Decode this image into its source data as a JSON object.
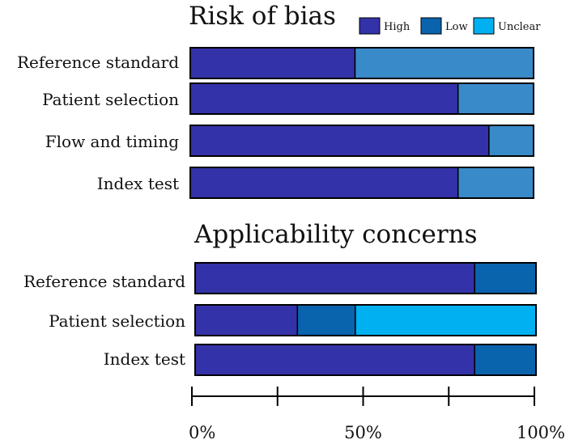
{
  "chart_data": {
    "type": "bar",
    "orientation": "horizontal",
    "stacked": true,
    "legend": {
      "placement": "top-right",
      "entries": [
        {
          "label": "High",
          "color": "#3432a8"
        },
        {
          "label": "Low",
          "color": "#0a63ad"
        },
        {
          "label": "Unclear",
          "color": "#00b0f0"
        }
      ]
    },
    "xlim": [
      0,
      100
    ],
    "xticks": [
      {
        "value": 0,
        "label": "0%"
      },
      {
        "value": 25,
        "label": ""
      },
      {
        "value": 50,
        "label": "50%"
      },
      {
        "value": 75,
        "label": ""
      },
      {
        "value": 100,
        "label": "100%"
      }
    ],
    "panels": [
      {
        "title": "Risk of bias",
        "rows": [
          {
            "label": "Reference standard",
            "segments": [
              {
                "series": "High",
                "value": 48,
                "color": "#3432a8"
              },
              {
                "series": "Unclear",
                "value": 52,
                "color": "#398ac9"
              }
            ]
          },
          {
            "label": "Patient selection",
            "segments": [
              {
                "series": "High",
                "value": 78,
                "color": "#3432a8"
              },
              {
                "series": "Unclear",
                "value": 22,
                "color": "#398ac9"
              }
            ]
          },
          {
            "label": "Flow and timing",
            "segments": [
              {
                "series": "High",
                "value": 87,
                "color": "#3432a8"
              },
              {
                "series": "Unclear",
                "value": 13,
                "color": "#398ac9"
              }
            ]
          },
          {
            "label": "Index test",
            "segments": [
              {
                "series": "High",
                "value": 78,
                "color": "#3432a8"
              },
              {
                "series": "Unclear",
                "value": 22,
                "color": "#398ac9"
              }
            ]
          }
        ]
      },
      {
        "title": "Applicability concerns",
        "rows": [
          {
            "label": "Reference standard",
            "segments": [
              {
                "series": "High",
                "value": 82,
                "color": "#3432a8"
              },
              {
                "series": "Low",
                "value": 18,
                "color": "#0a63ad"
              }
            ]
          },
          {
            "label": "Patient selection",
            "segments": [
              {
                "series": "High",
                "value": 30,
                "color": "#3432a8"
              },
              {
                "series": "Low",
                "value": 17,
                "color": "#0a63ad"
              },
              {
                "series": "Unclear",
                "value": 53,
                "color": "#00b0f0"
              }
            ]
          },
          {
            "label": "Index test",
            "segments": [
              {
                "series": "High",
                "value": 82,
                "color": "#3432a8"
              },
              {
                "series": "Low",
                "value": 18,
                "color": "#0a63ad"
              }
            ]
          }
        ]
      }
    ]
  }
}
